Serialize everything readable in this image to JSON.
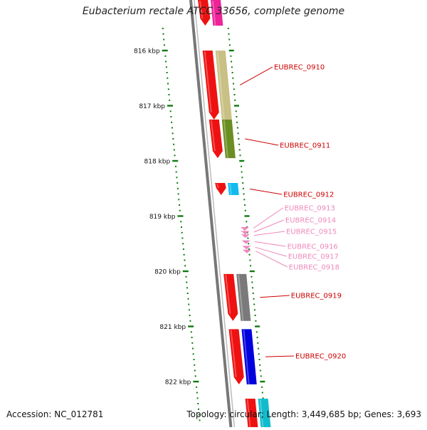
{
  "title": "Eubacterium rectale ATCC 33656, complete genome",
  "accession_text": "Accession: NC_012781",
  "summary_text": "Topology: circular; Length: 3,449,685 bp; Genes: 3,693",
  "colors": {
    "backbone": "#7a7a7a",
    "tick": "#0e7a0e",
    "label_red": "#cc0000",
    "label_pink": "#ee88bb"
  },
  "scale": {
    "ticks": [
      {
        "label": "816 kbp",
        "kbp": 816
      },
      {
        "label": "817 kbp",
        "kbp": 817
      },
      {
        "label": "818 kbp",
        "kbp": 818
      },
      {
        "label": "819 kbp",
        "kbp": 819
      },
      {
        "label": "820 kbp",
        "kbp": 820
      },
      {
        "label": "821 kbp",
        "kbp": 821
      },
      {
        "label": "822 kbp",
        "kbp": 822
      }
    ]
  },
  "genes": [
    {
      "id": "EUBREC_0910",
      "start_kbp": 816.0,
      "end_kbp": 817.25,
      "cog_color": "#c8c084",
      "label_color": "#cc0000"
    },
    {
      "id": "EUBREC_0911",
      "start_kbp": 817.25,
      "end_kbp": 817.95,
      "cog_color": "#6b8e23",
      "label_color": "#cc0000"
    },
    {
      "id": "EUBREC_0912",
      "start_kbp": 818.4,
      "end_kbp": 818.62,
      "cog_color": "#11bbee",
      "label_color": "#cc0000"
    },
    {
      "id": "EUBREC_0913",
      "start_kbp": 819.2,
      "end_kbp": 819.24,
      "cog_color": "#ffffff",
      "label_color": "#ee88bb"
    },
    {
      "id": "EUBREC_0914",
      "start_kbp": 819.27,
      "end_kbp": 819.31,
      "cog_color": "#ffffff",
      "label_color": "#ee88bb"
    },
    {
      "id": "EUBREC_0915",
      "start_kbp": 819.33,
      "end_kbp": 819.37,
      "cog_color": "#ffffff",
      "label_color": "#ee88bb"
    },
    {
      "id": "EUBREC_0916",
      "start_kbp": 819.44,
      "end_kbp": 819.49,
      "cog_color": "#ffffff",
      "label_color": "#ee88bb"
    },
    {
      "id": "EUBREC_0917",
      "start_kbp": 819.54,
      "end_kbp": 819.59,
      "cog_color": "#ffffff",
      "label_color": "#ee88bb"
    },
    {
      "id": "EUBREC_0918",
      "start_kbp": 819.61,
      "end_kbp": 819.66,
      "cog_color": "#ffffff",
      "label_color": "#ee88bb"
    },
    {
      "id": "EUBREC_0919",
      "start_kbp": 820.05,
      "end_kbp": 820.9,
      "cog_color": "#7a7a7a",
      "label_color": "#cc0000"
    },
    {
      "id": "EUBREC_0920",
      "start_kbp": 821.05,
      "end_kbp": 822.05,
      "cog_color": "#0000dd",
      "label_color": "#cc0000"
    }
  ]
}
